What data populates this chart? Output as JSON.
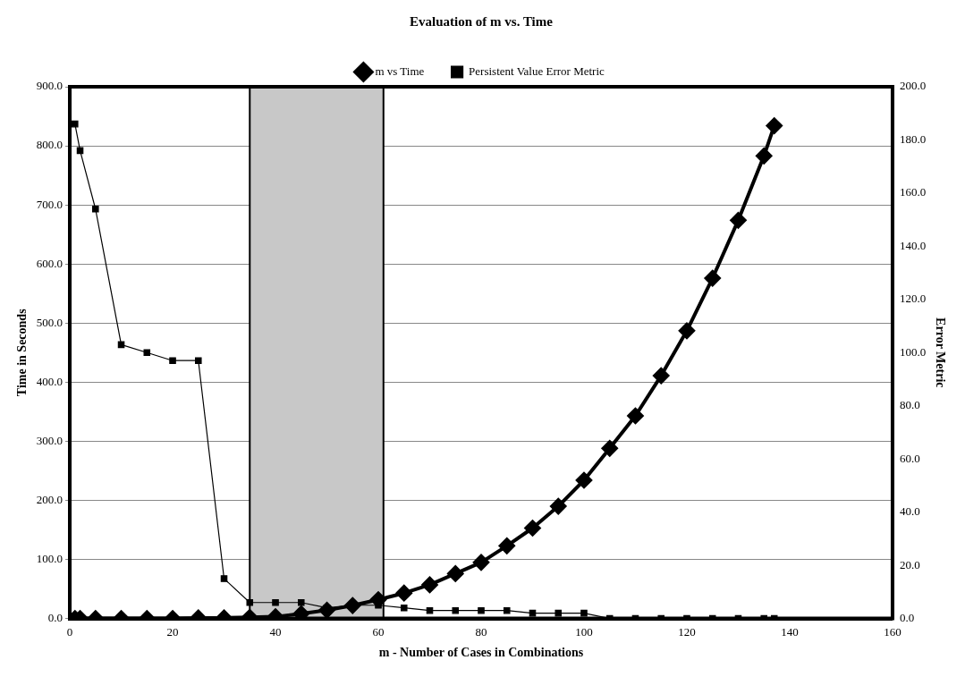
{
  "chart_data": {
    "type": "line",
    "title": "Evaluation of m vs. Time",
    "xlabel": "m - Number of Cases in Combinations",
    "ylabel": "Time in Seconds",
    "y2label": "Error Metric",
    "x": [
      1,
      2,
      5,
      10,
      15,
      20,
      25,
      30,
      35,
      40,
      45,
      50,
      55,
      60,
      65,
      70,
      75,
      80,
      85,
      90,
      95,
      100,
      105,
      110,
      115,
      120,
      125,
      130,
      135,
      137
    ],
    "series": [
      {
        "name": "m vs Time",
        "color": "#000000",
        "marker": "diamond",
        "values": [
          0,
          0,
          0,
          0,
          0,
          0,
          1,
          1,
          2,
          3,
          8,
          14,
          22,
          32,
          43,
          57,
          76,
          95,
          123,
          153,
          190,
          234,
          288,
          343,
          411,
          487,
          576,
          674,
          783,
          834
        ]
      },
      {
        "name": "Persistent Value Error Metric",
        "color": "#000000",
        "marker": "square",
        "axis": "y2",
        "values": [
          186,
          176,
          154,
          103,
          100,
          97,
          97,
          15,
          6,
          6,
          6,
          4,
          5,
          5,
          4,
          3,
          3,
          3,
          3,
          2,
          2,
          2,
          0,
          0,
          0,
          0,
          0,
          0,
          0,
          0
        ]
      }
    ],
    "xlim": [
      0,
      160
    ],
    "xticks": [
      0,
      20,
      40,
      60,
      80,
      100,
      120,
      140,
      160
    ],
    "ylim": [
      0,
      900
    ],
    "yticks": [
      {
        "value": 0,
        "label": "0.0"
      },
      {
        "value": 100,
        "label": "100.0"
      },
      {
        "value": 200,
        "label": "200.0"
      },
      {
        "value": 300,
        "label": "300.0"
      },
      {
        "value": 400,
        "label": "400.0"
      },
      {
        "value": 500,
        "label": "500.0"
      },
      {
        "value": 600,
        "label": "600.0"
      },
      {
        "value": 700,
        "label": "700.0"
      },
      {
        "value": 800,
        "label": "800.0"
      },
      {
        "value": 900,
        "label": "900.0"
      }
    ],
    "y2lim": [
      0,
      200
    ],
    "y2ticks": [
      {
        "value": 0,
        "label": "0.0"
      },
      {
        "value": 20,
        "label": "20.0"
      },
      {
        "value": 40,
        "label": "40.0"
      },
      {
        "value": 60,
        "label": "60.0"
      },
      {
        "value": 80,
        "label": "80.0"
      },
      {
        "value": 100,
        "label": "100.0"
      },
      {
        "value": 120,
        "label": "120.0"
      },
      {
        "value": 140,
        "label": "140.0"
      },
      {
        "value": 160,
        "label": "160.0"
      },
      {
        "value": 180,
        "label": "180.0"
      },
      {
        "value": 200,
        "label": "200.0"
      }
    ],
    "bands": [
      {
        "axis": "x",
        "from": 35,
        "to": 61,
        "color": "#c8c8c8"
      }
    ],
    "grid": "y",
    "legend": "top",
    "line_style": "solid"
  }
}
